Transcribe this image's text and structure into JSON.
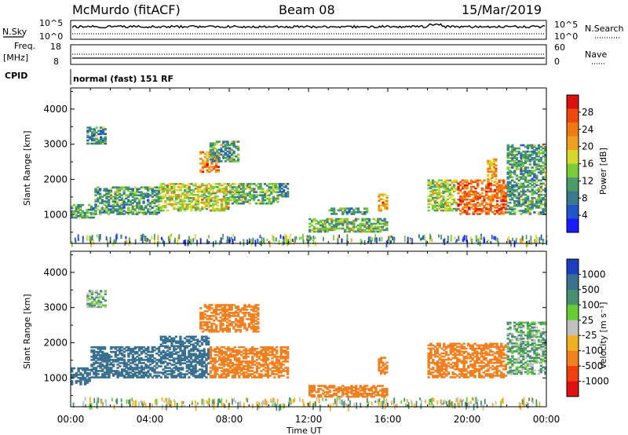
{
  "header": {
    "station": "McMurdo (fitACF)",
    "beam": "Beam 08",
    "date": "15/Mar/2019"
  },
  "sidepanel": {
    "nsky_label": "N.Sky",
    "nsky_top": "10^5",
    "nsky_bottom": "10^0",
    "nsearch_label": "N.Search",
    "nsearch_top": "10^5",
    "nsearch_bottom": "10^0",
    "freq_label_1": "Freq.",
    "freq_label_2": "[MHz]",
    "freq_top": "18",
    "freq_bottom": "8",
    "nave_label": "Nave",
    "nave_top": "60",
    "nave_bottom": "0",
    "cpid_label": "CPID",
    "cpid_text": "normal (fast) 151 RF"
  },
  "chart_data": [
    {
      "type": "heatmap",
      "title": "",
      "xlabel": "Time UT",
      "ylabel": "Slant Range [km]",
      "xticks": [
        "00:00",
        "04:00",
        "08:00",
        "12:00",
        "16:00",
        "20:00",
        "00:00"
      ],
      "yticks": [
        "1000",
        "2000",
        "3000",
        "4000"
      ],
      "ylim": [
        180,
        4600
      ],
      "colorbar": {
        "label": "Power [dB]",
        "ticks": [
          "4",
          "8",
          "12",
          "16",
          "20",
          "24",
          "28"
        ],
        "colors": [
          "#1a1aff",
          "#2255cc",
          "#3a7a8a",
          "#4a9a6a",
          "#7acc3a",
          "#d8d82a",
          "#f0a020",
          "#f07a10",
          "#ee4a10",
          "#dd1010"
        ]
      },
      "echo_regions": [
        {
          "t": [
            0.0,
            1.2
          ],
          "r": [
            900,
            1300
          ],
          "value": 8
        },
        {
          "t": [
            1.2,
            4.5
          ],
          "r": [
            1000,
            1800
          ],
          "value": 8
        },
        {
          "t": [
            4.5,
            8.0
          ],
          "r": [
            1100,
            1900
          ],
          "value": 13
        },
        {
          "t": [
            8.0,
            10.5
          ],
          "r": [
            1300,
            1900
          ],
          "value": 10
        },
        {
          "t": [
            10.5,
            11.0
          ],
          "r": [
            1500,
            1900
          ],
          "value": 6
        },
        {
          "t": [
            0.8,
            1.8
          ],
          "r": [
            3000,
            3500
          ],
          "value": 6
        },
        {
          "t": [
            6.5,
            7.5
          ],
          "r": [
            2200,
            2800
          ],
          "value": 20
        },
        {
          "t": [
            7.0,
            8.5
          ],
          "r": [
            2500,
            3100
          ],
          "value": 8
        },
        {
          "t": [
            12.0,
            16.0
          ],
          "r": [
            500,
            900
          ],
          "value": 10
        },
        {
          "t": [
            13.0,
            15.0
          ],
          "r": [
            1000,
            1200
          ],
          "value": 8
        },
        {
          "t": [
            15.5,
            16.0
          ],
          "r": [
            1100,
            1600
          ],
          "value": 18
        },
        {
          "t": [
            18.0,
            19.5
          ],
          "r": [
            1100,
            2000
          ],
          "value": 12
        },
        {
          "t": [
            19.5,
            22.0
          ],
          "r": [
            1000,
            2000
          ],
          "value": 22
        },
        {
          "t": [
            21.0,
            21.5
          ],
          "r": [
            1900,
            2600
          ],
          "value": 18
        },
        {
          "t": [
            22.0,
            24.0
          ],
          "r": [
            1000,
            3000
          ],
          "value": 8
        }
      ]
    },
    {
      "type": "heatmap",
      "title": "",
      "xlabel": "Time UT",
      "ylabel": "Slant Range [km]",
      "xticks": [
        "00:00",
        "04:00",
        "08:00",
        "12:00",
        "16:00",
        "20:00",
        "00:00"
      ],
      "yticks": [
        "1000",
        "2000",
        "3000",
        "4000"
      ],
      "ylim": [
        180,
        4600
      ],
      "colorbar": {
        "label": "Velocity [m s⁻¹]",
        "ticks": [
          "1000",
          "500",
          "100",
          "25",
          "-25",
          "-100",
          "-500",
          "-1000"
        ],
        "colors": [
          "#1a40c0",
          "#3a7090",
          "#4a9070",
          "#66cc33",
          "#c0c0c0",
          "#f0b020",
          "#f08020",
          "#f04010",
          "#e01010"
        ]
      },
      "echo_regions": [
        {
          "t": [
            0.0,
            1.0
          ],
          "r": [
            800,
            1300
          ],
          "value": 150
        },
        {
          "t": [
            1.0,
            4.5
          ],
          "r": [
            1000,
            1900
          ],
          "value": 150
        },
        {
          "t": [
            4.5,
            7.0
          ],
          "r": [
            1000,
            2200
          ],
          "value": 150
        },
        {
          "t": [
            7.0,
            11.0
          ],
          "r": [
            1000,
            1900
          ],
          "value": -150
        },
        {
          "t": [
            0.8,
            1.8
          ],
          "r": [
            3000,
            3500
          ],
          "value": 20
        },
        {
          "t": [
            6.5,
            9.5
          ],
          "r": [
            2300,
            3100
          ],
          "value": -150
        },
        {
          "t": [
            12.0,
            16.0
          ],
          "r": [
            450,
            800
          ],
          "value": -150
        },
        {
          "t": [
            15.5,
            16.0
          ],
          "r": [
            1100,
            1600
          ],
          "value": -150
        },
        {
          "t": [
            18.0,
            22.0
          ],
          "r": [
            1000,
            2000
          ],
          "value": -150
        },
        {
          "t": [
            22.0,
            24.0
          ],
          "r": [
            1100,
            2600
          ],
          "value": 30
        }
      ]
    }
  ]
}
